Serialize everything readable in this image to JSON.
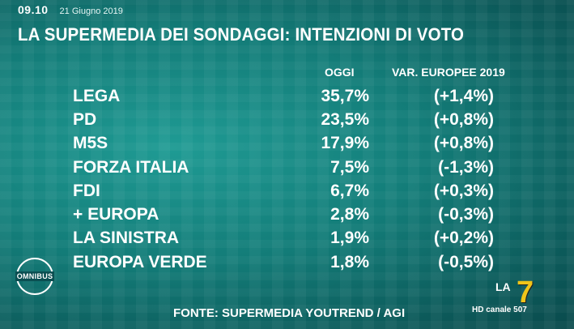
{
  "header": {
    "time": "09.10",
    "date": "21 Giugno 2019",
    "title": "LA SUPERMEDIA DEI SONDAGGI: INTENZIONI DI VOTO"
  },
  "columns": {
    "today": "OGGI",
    "variation": "VAR. EUROPEE 2019"
  },
  "rows": [
    {
      "party": "LEGA",
      "value": "35,7%",
      "variation": "(+1,4%)"
    },
    {
      "party": "PD",
      "value": "23,5%",
      "variation": "(+0,8%)"
    },
    {
      "party": "M5S",
      "value": "17,9%",
      "variation": "(+0,8%)"
    },
    {
      "party": "FORZA ITALIA",
      "value": "7,5%",
      "variation": "(-1,3%)"
    },
    {
      "party": "FDI",
      "value": "6,7%",
      "variation": "(+0,3%)"
    },
    {
      "party": "+ EUROPA",
      "value": "2,8%",
      "variation": "(-0,3%)"
    },
    {
      "party": "LA SINISTRA",
      "value": "1,9%",
      "variation": "(+0,2%)"
    },
    {
      "party": "EUROPA VERDE",
      "value": "1,8%",
      "variation": "(-0,5%)"
    }
  ],
  "footer": {
    "source": "FONTE: SUPERMEDIA YOUTREND / AGI",
    "program_logo": "OMNIBUS",
    "channel_logo_text": "LA",
    "channel_logo_number": "7",
    "channel_info": "HD canale 507"
  },
  "colors": {
    "background": "#137c78",
    "text": "#ffffff",
    "logo_accent": "#f0c419"
  }
}
